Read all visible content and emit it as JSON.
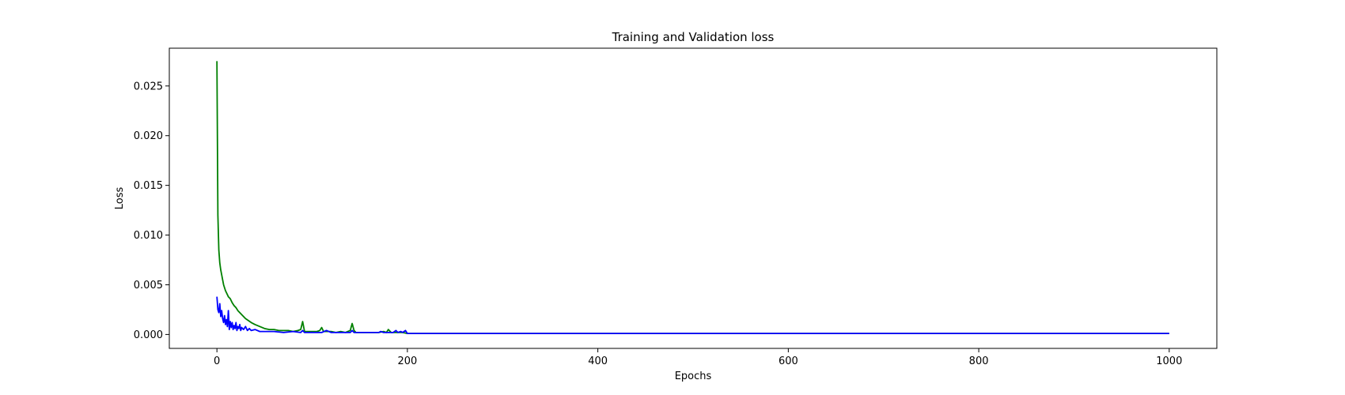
{
  "chart_data": {
    "type": "line",
    "title": "Training and Validation loss",
    "xlabel": "Epochs",
    "ylabel": "Loss",
    "xlim": [
      -50,
      1050
    ],
    "ylim": [
      -0.0014,
      0.0288
    ],
    "xticks": [
      0,
      200,
      400,
      600,
      800,
      1000
    ],
    "yticks": [
      0.0,
      0.005,
      0.01,
      0.015,
      0.02,
      0.025
    ],
    "ytick_labels": [
      "0.000",
      "0.005",
      "0.010",
      "0.015",
      "0.020",
      "0.025"
    ],
    "grid": false,
    "legend": "none",
    "series": [
      {
        "color": "#008000",
        "x": [
          0,
          1,
          2,
          3,
          4,
          5,
          6,
          7,
          8,
          9,
          10,
          12,
          14,
          16,
          18,
          20,
          22,
          24,
          26,
          28,
          30,
          33,
          36,
          40,
          45,
          50,
          55,
          60,
          65,
          70,
          75,
          80,
          85,
          88,
          90,
          92,
          95,
          100,
          105,
          108,
          110,
          112,
          115,
          120,
          125,
          130,
          135,
          140,
          142,
          144,
          146,
          150,
          160,
          170,
          175,
          178,
          180,
          183,
          186,
          190,
          195,
          200,
          250,
          300,
          400,
          500,
          600,
          700,
          800,
          900,
          1000
        ],
        "y": [
          0.0275,
          0.012,
          0.0085,
          0.0072,
          0.0065,
          0.006,
          0.0055,
          0.005,
          0.0047,
          0.0044,
          0.0042,
          0.0038,
          0.0036,
          0.0032,
          0.0029,
          0.0027,
          0.0024,
          0.0022,
          0.002,
          0.0018,
          0.0016,
          0.0014,
          0.0012,
          0.001,
          0.0008,
          0.0006,
          0.0005,
          0.0005,
          0.0004,
          0.0004,
          0.0004,
          0.0003,
          0.0004,
          0.0005,
          0.0013,
          0.0003,
          0.0003,
          0.0003,
          0.0003,
          0.0004,
          0.0007,
          0.0003,
          0.0003,
          0.0003,
          0.0002,
          0.0003,
          0.0002,
          0.0004,
          0.0011,
          0.0004,
          0.0002,
          0.0002,
          0.0002,
          0.0002,
          0.0003,
          0.0002,
          0.0005,
          0.0002,
          0.0002,
          0.0002,
          0.0002,
          0.0001,
          0.0001,
          0.0001,
          0.0001,
          0.0001,
          0.0001,
          0.0001,
          0.0001,
          0.0001,
          0.0001
        ]
      },
      {
        "color": "#0000ff",
        "x": [
          0,
          1,
          2,
          3,
          4,
          5,
          6,
          7,
          8,
          9,
          10,
          11,
          12,
          13,
          14,
          15,
          16,
          17,
          18,
          19,
          20,
          21,
          22,
          23,
          24,
          25,
          26,
          28,
          30,
          32,
          34,
          36,
          40,
          45,
          50,
          60,
          70,
          80,
          88,
          90,
          92,
          100,
          110,
          115,
          120,
          130,
          140,
          142,
          144,
          150,
          160,
          170,
          172,
          175,
          180,
          185,
          188,
          190,
          193,
          195,
          198,
          200,
          300,
          400,
          500,
          600,
          700,
          800,
          900,
          1000
        ],
        "y": [
          0.0038,
          0.0025,
          0.0022,
          0.0031,
          0.0018,
          0.0024,
          0.0016,
          0.0012,
          0.0019,
          0.001,
          0.0015,
          0.0008,
          0.0024,
          0.0005,
          0.0013,
          0.0007,
          0.0012,
          0.0005,
          0.0009,
          0.0006,
          0.0012,
          0.0004,
          0.0008,
          0.0006,
          0.001,
          0.0004,
          0.0007,
          0.0005,
          0.0008,
          0.0004,
          0.0006,
          0.0004,
          0.0005,
          0.0003,
          0.0003,
          0.0003,
          0.0002,
          0.0003,
          0.0002,
          0.0004,
          0.0002,
          0.0002,
          0.0002,
          0.0004,
          0.0002,
          0.0002,
          0.0002,
          0.0004,
          0.0002,
          0.0002,
          0.0002,
          0.0002,
          0.0003,
          0.0002,
          0.0002,
          0.0002,
          0.0004,
          0.0002,
          0.0003,
          0.0002,
          0.0004,
          0.0001,
          0.0001,
          0.0001,
          0.0001,
          0.0001,
          0.0001,
          0.0001,
          0.0001,
          0.0001
        ]
      }
    ]
  }
}
